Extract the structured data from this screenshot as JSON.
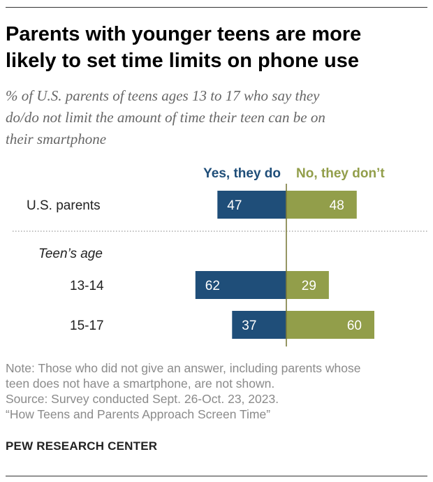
{
  "header": {
    "title_line1": "Parents with younger teens are more",
    "title_line2": "likely to set time limits on phone use",
    "subtitle_line1": "% of U.S. parents of teens ages 13 to 17 who say they",
    "subtitle_line2": "do/do not limit the amount of time their teen can be on",
    "subtitle_line3": "their smartphone"
  },
  "chart_data": {
    "type": "bar",
    "orientation": "horizontal-diverging",
    "group_label": "Teen’s age",
    "categories": [
      "U.S. parents",
      "13-14",
      "15-17"
    ],
    "series": [
      {
        "name": "Yes, they do",
        "color": "#1f4e79",
        "values": [
          47,
          62,
          37
        ]
      },
      {
        "name": "No, they don’t",
        "color": "#929e4a",
        "values": [
          48,
          29,
          60
        ]
      }
    ],
    "title": "Parents with younger teens are more likely to set time limits on phone use",
    "xlabel": "",
    "ylabel": "",
    "xlim": [
      0,
      100
    ]
  },
  "footer": {
    "note_line1": "Note: Those who did not give an answer, including parents whose",
    "note_line2": "teen does not have a smartphone, are not shown.",
    "source_line": "Source: Survey conducted Sept. 26-Oct. 23, 2023.",
    "report_line": "“How Teens and Parents Approach Screen Time”",
    "brand": "PEW RESEARCH CENTER"
  },
  "colors": {
    "yes": "#1f4e79",
    "no": "#929e4a",
    "axis": "#7b7b3c"
  }
}
